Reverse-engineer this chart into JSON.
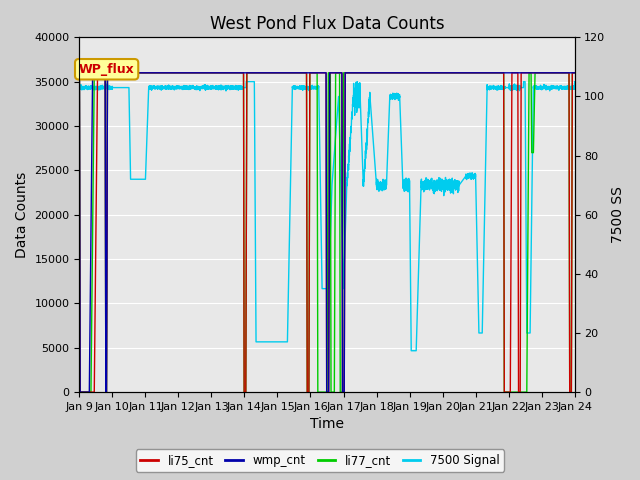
{
  "title": "West Pond Flux Data Counts",
  "xlabel": "Time",
  "ylabel_left": "Data Counts",
  "ylabel_right": "7500 SS",
  "legend_label": "WP_flux",
  "ylim_left": [
    0,
    40000
  ],
  "ylim_right": [
    0,
    120
  ],
  "yticks_left": [
    0,
    5000,
    10000,
    15000,
    20000,
    25000,
    30000,
    35000,
    40000
  ],
  "yticks_right": [
    0,
    20,
    40,
    60,
    80,
    100,
    120
  ],
  "xtick_labels": [
    "Jan 9",
    "Jan 10",
    "Jan 11",
    "Jan 12",
    "Jan 13",
    "Jan 14",
    "Jan 15",
    "Jan 16",
    "Jan 17",
    "Jan 18",
    "Jan 19",
    "Jan 20",
    "Jan 21",
    "Jan 22",
    "Jan 23",
    "Jan 24"
  ],
  "color_li75": "#cc0000",
  "color_wmp": "#0000aa",
  "color_li77": "#00cc00",
  "color_7500": "#00ccee",
  "fig_bg": "#d0d0d0",
  "plot_bg": "#e8e8e8",
  "legend_bg": "#ffff99",
  "legend_border": "#cc9900",
  "title_fontsize": 12,
  "axis_fontsize": 10,
  "tick_fontsize": 8,
  "linewidth": 1.0
}
